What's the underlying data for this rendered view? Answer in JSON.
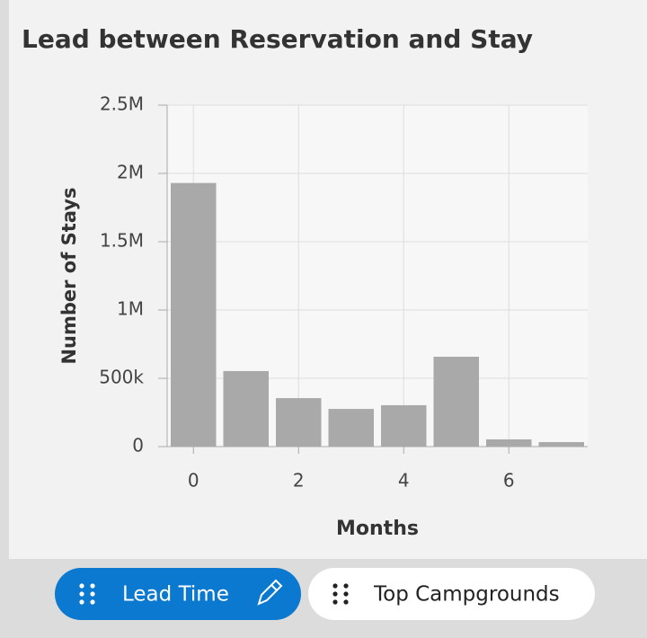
{
  "chart_data": {
    "type": "histogram",
    "title": "Lead between Reservation and Stay",
    "x_label": "Months",
    "y_label": "Number of Stays",
    "bins": [
      -0.5,
      0.5,
      1.5,
      2.5,
      3.5,
      4.5,
      5.5,
      6.5,
      7.5
    ],
    "values": [
      1930000,
      553000,
      355000,
      276000,
      303000,
      658000,
      53000,
      33000
    ],
    "color": "#a9a9a9",
    "xlim": [
      -0.5,
      7.5
    ],
    "xticks": [
      0,
      2,
      4,
      6
    ],
    "ylim": [
      0,
      2500000
    ],
    "yticks": [
      0,
      {
        "value": 500000,
        "label": "500k"
      },
      {
        "value": 1000000,
        "label": "1M"
      },
      {
        "value": 1500000,
        "label": "1.5M"
      },
      {
        "value": 2000000,
        "label": "2M"
      },
      {
        "value": 2500000,
        "label": "2.5M"
      }
    ],
    "grid": true
  },
  "tabs": [
    {
      "label": "Lead Time"
    },
    {
      "label": "Top Campgrounds"
    }
  ]
}
